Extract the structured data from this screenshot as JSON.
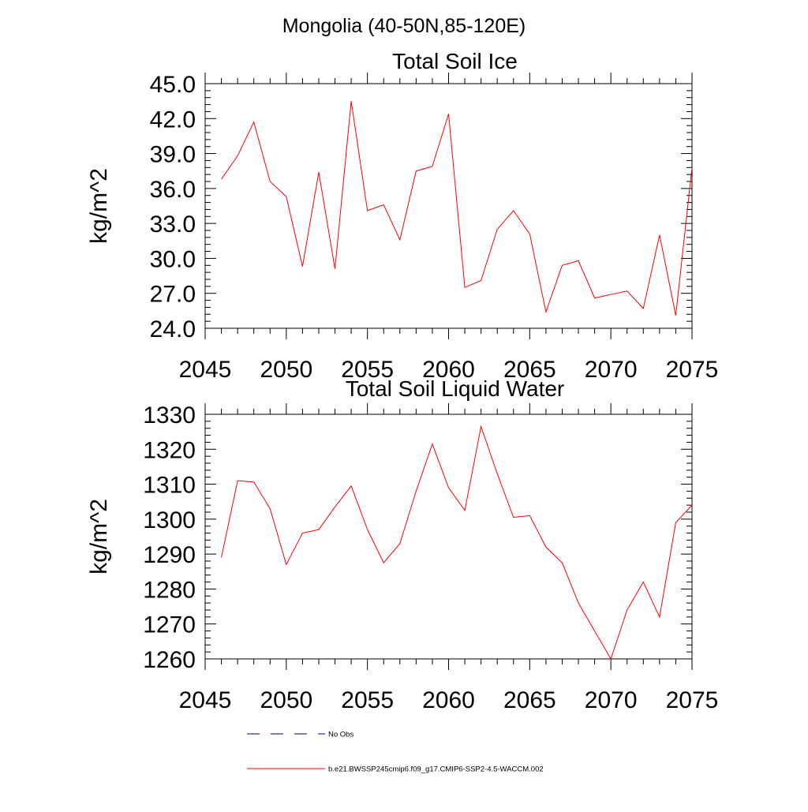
{
  "page_title": "Mongolia (40-50N,85-120E)",
  "chart_data": [
    {
      "type": "line",
      "title": "Total Soil Ice",
      "xlabel": "",
      "ylabel": "kg/m^2",
      "xlim": [
        2045,
        2075
      ],
      "ylim": [
        24.0,
        45.0
      ],
      "x_ticks": [
        "2045",
        "2050",
        "2055",
        "2060",
        "2065",
        "2070",
        "2075"
      ],
      "y_ticks": [
        "24.0",
        "27.0",
        "30.0",
        "33.0",
        "36.0",
        "39.0",
        "42.0",
        "45.0"
      ],
      "grid": false,
      "series": [
        {
          "name": "b.e21.BWSSP245cmip6.f09_g17.CMIP6-SSP2-4.5-WACCM.002",
          "color": "#ff0000",
          "x": [
            2046,
            2047,
            2048,
            2049,
            2050,
            2051,
            2052,
            2053,
            2054,
            2055,
            2056,
            2057,
            2058,
            2059,
            2060,
            2061,
            2062,
            2063,
            2064,
            2065,
            2066,
            2067,
            2068,
            2069,
            2070,
            2071,
            2072,
            2073,
            2074,
            2075
          ],
          "y": [
            36.8,
            38.8,
            41.7,
            36.6,
            35.3,
            29.3,
            37.4,
            29.1,
            43.5,
            34.1,
            34.6,
            31.6,
            37.5,
            37.9,
            42.4,
            27.5,
            28.1,
            32.5,
            34.1,
            32.1,
            25.4,
            29.4,
            29.8,
            26.6,
            26.9,
            27.2,
            25.7,
            32.0,
            25.1,
            37.8
          ]
        }
      ]
    },
    {
      "type": "line",
      "title": "Total Soil Liquid Water",
      "xlabel": "",
      "ylabel": "kg/m^2",
      "xlim": [
        2045,
        2075
      ],
      "ylim": [
        1260,
        1330
      ],
      "x_ticks": [
        "2045",
        "2050",
        "2055",
        "2060",
        "2065",
        "2070",
        "2075"
      ],
      "y_ticks": [
        "1260",
        "1270",
        "1280",
        "1290",
        "1300",
        "1310",
        "1320",
        "1330"
      ],
      "grid": false,
      "series": [
        {
          "name": "b.e21.BWSSP245cmip6.f09_g17.CMIP6-SSP2-4.5-WACCM.002",
          "color": "#ff0000",
          "x": [
            2046,
            2047,
            2048,
            2049,
            2050,
            2051,
            2052,
            2053,
            2054,
            2055,
            2056,
            2057,
            2058,
            2059,
            2060,
            2061,
            2062,
            2063,
            2064,
            2065,
            2066,
            2067,
            2068,
            2069,
            2070,
            2071,
            2072,
            2073,
            2074,
            2075
          ],
          "y": [
            1289,
            1311,
            1310.6,
            1303,
            1287,
            1296,
            1297,
            1303.5,
            1309.5,
            1297,
            1287.5,
            1293,
            1308,
            1321.5,
            1309,
            1302.5,
            1326.5,
            1313,
            1300.5,
            1301,
            1292,
            1287.5,
            1276,
            1268,
            1260,
            1274,
            1282,
            1272,
            1299,
            1304
          ]
        }
      ]
    }
  ],
  "legend": [
    {
      "label": "No Obs",
      "style": "dashed",
      "color": "#000080"
    },
    {
      "label": "b.e21.BWSSP245cmip6.f09_g17.CMIP6-SSP2-4.5-WACCM.002",
      "style": "solid",
      "color": "#ff0000"
    }
  ]
}
